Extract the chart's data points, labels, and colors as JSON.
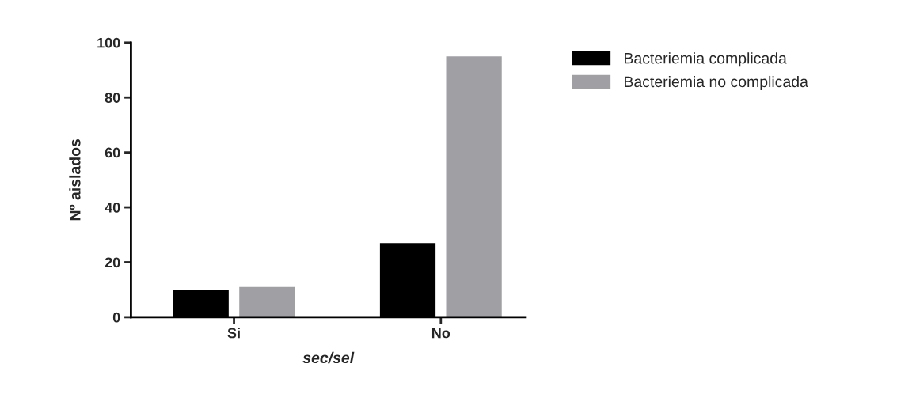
{
  "chart_data": {
    "type": "bar",
    "xlabel": "sec/sel",
    "ylabel": "Nº aislados",
    "categories": [
      "Si",
      "No"
    ],
    "series": [
      {
        "name": "Bacteriemia complicada",
        "color": "#000000",
        "values": [
          10,
          27
        ]
      },
      {
        "name": "Bacteriemia no complicada",
        "color": "#a09fa4",
        "values": [
          11,
          95
        ]
      }
    ],
    "ylim": [
      0,
      100
    ],
    "yticks": [
      0,
      20,
      40,
      60,
      80,
      100
    ],
    "grid": false,
    "legend": "top right"
  }
}
